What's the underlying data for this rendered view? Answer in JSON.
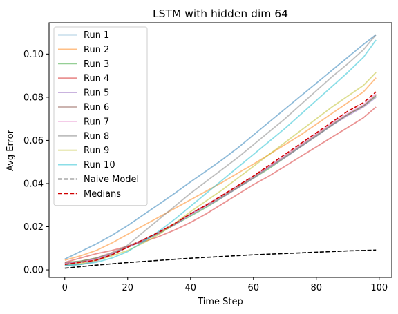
{
  "chart_data": {
    "type": "line",
    "title": "LSTM with hidden dim 64",
    "xlabel": "Time Step",
    "ylabel": "Avg Error",
    "xlim": [
      -5,
      104
    ],
    "ylim": [
      -0.0035,
      0.1145
    ],
    "xticks": [
      0,
      20,
      40,
      60,
      80,
      100
    ],
    "xtick_labels": [
      "0",
      "20",
      "40",
      "60",
      "80",
      "100"
    ],
    "yticks": [
      0.0,
      0.02,
      0.04,
      0.06,
      0.08,
      0.1
    ],
    "ytick_labels": [
      "0.00",
      "0.02",
      "0.04",
      "0.06",
      "0.08",
      "0.10"
    ],
    "grid": false,
    "legend": "upper left",
    "x": [
      0,
      5,
      10,
      15,
      20,
      25,
      30,
      35,
      40,
      45,
      50,
      55,
      60,
      65,
      70,
      75,
      80,
      85,
      90,
      95,
      99
    ],
    "series": [
      {
        "name": "Run 1",
        "color": "#1f77b4",
        "alpha": 0.5,
        "dashed": false,
        "values": [
          0.005,
          0.0085,
          0.012,
          0.016,
          0.0205,
          0.0255,
          0.0305,
          0.0355,
          0.0408,
          0.0458,
          0.051,
          0.0565,
          0.0625,
          0.0685,
          0.0745,
          0.0805,
          0.0865,
          0.0925,
          0.0985,
          0.1045,
          0.109
        ]
      },
      {
        "name": "Run 2",
        "color": "#ff7f0e",
        "alpha": 0.5,
        "dashed": false,
        "values": [
          0.0045,
          0.0065,
          0.009,
          0.0125,
          0.0165,
          0.0205,
          0.0245,
          0.0285,
          0.0325,
          0.0365,
          0.0405,
          0.0448,
          0.049,
          0.0535,
          0.058,
          0.0625,
          0.0675,
          0.0725,
          0.0775,
          0.0825,
          0.089
        ]
      },
      {
        "name": "Run 3",
        "color": "#2ca02c",
        "alpha": 0.5,
        "dashed": false,
        "values": [
          0.0035,
          0.004,
          0.0055,
          0.0075,
          0.0105,
          0.0135,
          0.017,
          0.021,
          0.025,
          0.029,
          0.0335,
          0.038,
          0.0425,
          0.047,
          0.052,
          0.057,
          0.062,
          0.067,
          0.072,
          0.076,
          0.0805
        ]
      },
      {
        "name": "Run 4",
        "color": "#d62728",
        "alpha": 0.5,
        "dashed": false,
        "values": [
          0.0035,
          0.0055,
          0.0075,
          0.009,
          0.011,
          0.013,
          0.0155,
          0.0185,
          0.022,
          0.026,
          0.0305,
          0.035,
          0.0395,
          0.0435,
          0.048,
          0.0525,
          0.057,
          0.0615,
          0.066,
          0.0705,
          0.0755
        ]
      },
      {
        "name": "Run 5",
        "color": "#9467bd",
        "alpha": 0.5,
        "dashed": false,
        "values": [
          0.003,
          0.0035,
          0.005,
          0.0075,
          0.0105,
          0.0135,
          0.017,
          0.021,
          0.0255,
          0.0295,
          0.0335,
          0.038,
          0.0425,
          0.0475,
          0.052,
          0.057,
          0.062,
          0.067,
          0.0715,
          0.0755,
          0.08
        ]
      },
      {
        "name": "Run 6",
        "color": "#8c564b",
        "alpha": 0.5,
        "dashed": false,
        "values": [
          0.003,
          0.004,
          0.0055,
          0.008,
          0.011,
          0.014,
          0.0175,
          0.0215,
          0.026,
          0.03,
          0.034,
          0.0385,
          0.043,
          0.0478,
          0.0525,
          0.0575,
          0.0625,
          0.0675,
          0.072,
          0.076,
          0.081
        ]
      },
      {
        "name": "Run 7",
        "color": "#e377c2",
        "alpha": 0.5,
        "dashed": false,
        "values": [
          0.003,
          0.0035,
          0.005,
          0.0075,
          0.0105,
          0.014,
          0.0175,
          0.0215,
          0.026,
          0.0302,
          0.0345,
          0.039,
          0.0435,
          0.048,
          0.053,
          0.058,
          0.063,
          0.068,
          0.0725,
          0.0765,
          0.0815
        ]
      },
      {
        "name": "Run 8",
        "color": "#7f7f7f",
        "alpha": 0.5,
        "dashed": false,
        "values": [
          0.002,
          0.0025,
          0.004,
          0.007,
          0.0115,
          0.0175,
          0.0235,
          0.0295,
          0.0355,
          0.041,
          0.0465,
          0.052,
          0.058,
          0.064,
          0.07,
          0.0765,
          0.083,
          0.0895,
          0.0955,
          0.102,
          0.109
        ]
      },
      {
        "name": "Run 9",
        "color": "#bcbd22",
        "alpha": 0.5,
        "dashed": false,
        "values": [
          0.0025,
          0.003,
          0.0045,
          0.0065,
          0.009,
          0.0125,
          0.0165,
          0.0215,
          0.027,
          0.032,
          0.037,
          0.0425,
          0.048,
          0.0535,
          0.059,
          0.0645,
          0.07,
          0.0755,
          0.0805,
          0.0855,
          0.0915
        ]
      },
      {
        "name": "Run 10",
        "color": "#17becf",
        "alpha": 0.5,
        "dashed": false,
        "values": [
          0.002,
          0.0025,
          0.0035,
          0.0055,
          0.0085,
          0.013,
          0.018,
          0.0235,
          0.0295,
          0.0355,
          0.0415,
          0.0475,
          0.0535,
          0.0595,
          0.0655,
          0.072,
          0.0785,
          0.085,
          0.0915,
          0.0985,
          0.1065
        ]
      },
      {
        "name": "Naive Model",
        "color": "#000000",
        "alpha": 1.0,
        "dashed": true,
        "values": [
          0.0008,
          0.0015,
          0.0022,
          0.0028,
          0.0034,
          0.0039,
          0.0044,
          0.0049,
          0.0054,
          0.0058,
          0.0062,
          0.0066,
          0.007,
          0.0073,
          0.0076,
          0.0079,
          0.0082,
          0.0085,
          0.0088,
          0.009,
          0.0092
        ]
      },
      {
        "name": "Medians",
        "color": "#d00000",
        "alpha": 1.0,
        "dashed": true,
        "values": [
          0.0025,
          0.0035,
          0.0045,
          0.007,
          0.0105,
          0.014,
          0.0175,
          0.0215,
          0.026,
          0.03,
          0.0345,
          0.039,
          0.0435,
          0.0485,
          0.0535,
          0.0585,
          0.0635,
          0.0685,
          0.0735,
          0.0775,
          0.0825
        ]
      }
    ]
  }
}
